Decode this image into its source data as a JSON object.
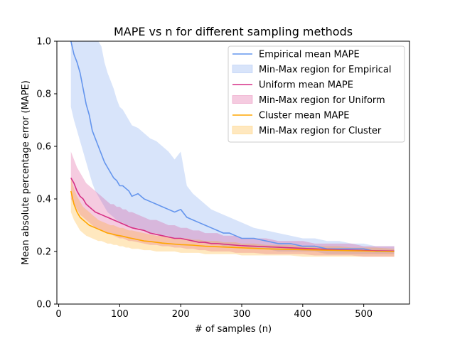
{
  "chart_data": {
    "type": "line",
    "title": "MAPE vs n for different sampling methods",
    "xlabel": "# of samples (n)",
    "ylabel": "Mean absolute percentage error (MAPE)",
    "xlim": [
      -3,
      575
    ],
    "ylim": [
      0.0,
      1.0
    ],
    "xticks": [
      0,
      100,
      200,
      300,
      400,
      500
    ],
    "yticks": [
      0.0,
      0.2,
      0.4,
      0.6,
      0.8,
      1.0
    ],
    "xtick_labels": [
      "0",
      "100",
      "200",
      "300",
      "400",
      "500"
    ],
    "ytick_labels": [
      "0.0",
      "0.2",
      "0.4",
      "0.6",
      "0.8",
      "1.0"
    ],
    "legend_position": "top-right",
    "grid": false,
    "series": [
      {
        "name": "Empirical mean MAPE",
        "band_name": "Min-Max region for Empirical",
        "color": "#6495ED",
        "x": [
          20,
          25,
          30,
          35,
          40,
          45,
          50,
          55,
          60,
          65,
          70,
          75,
          80,
          85,
          90,
          95,
          100,
          105,
          110,
          115,
          120,
          130,
          140,
          150,
          160,
          170,
          180,
          190,
          200,
          210,
          220,
          230,
          240,
          250,
          260,
          270,
          280,
          290,
          300,
          320,
          340,
          360,
          380,
          400,
          420,
          440,
          460,
          480,
          500,
          520,
          550
        ],
        "mean": [
          1.0,
          0.95,
          0.92,
          0.88,
          0.82,
          0.76,
          0.72,
          0.66,
          0.63,
          0.6,
          0.57,
          0.54,
          0.52,
          0.5,
          0.48,
          0.47,
          0.45,
          0.45,
          0.44,
          0.43,
          0.41,
          0.42,
          0.4,
          0.39,
          0.38,
          0.37,
          0.36,
          0.35,
          0.36,
          0.33,
          0.32,
          0.31,
          0.3,
          0.29,
          0.28,
          0.27,
          0.27,
          0.26,
          0.25,
          0.25,
          0.24,
          0.23,
          0.23,
          0.22,
          0.22,
          0.21,
          0.21,
          0.21,
          0.21,
          0.2,
          0.2
        ],
        "min": [
          0.75,
          0.7,
          0.66,
          0.62,
          0.58,
          0.54,
          0.5,
          0.46,
          0.43,
          0.41,
          0.39,
          0.37,
          0.35,
          0.34,
          0.33,
          0.32,
          0.31,
          0.31,
          0.3,
          0.3,
          0.29,
          0.29,
          0.28,
          0.27,
          0.27,
          0.26,
          0.26,
          0.25,
          0.25,
          0.25,
          0.24,
          0.24,
          0.23,
          0.23,
          0.23,
          0.22,
          0.22,
          0.22,
          0.22,
          0.21,
          0.21,
          0.2,
          0.2,
          0.2,
          0.2,
          0.19,
          0.19,
          0.19,
          0.19,
          0.19,
          0.19
        ],
        "max": [
          1.0,
          1.0,
          1.0,
          1.0,
          1.0,
          1.0,
          1.0,
          1.0,
          1.0,
          1.0,
          0.98,
          0.92,
          0.88,
          0.85,
          0.82,
          0.78,
          0.75,
          0.74,
          0.72,
          0.7,
          0.68,
          0.67,
          0.65,
          0.63,
          0.62,
          0.6,
          0.58,
          0.55,
          0.58,
          0.45,
          0.42,
          0.4,
          0.38,
          0.36,
          0.35,
          0.34,
          0.33,
          0.32,
          0.31,
          0.29,
          0.28,
          0.27,
          0.26,
          0.25,
          0.25,
          0.24,
          0.24,
          0.23,
          0.23,
          0.22,
          0.22
        ]
      },
      {
        "name": "Uniform mean MAPE",
        "band_name": "Min-Max region for Uniform",
        "color": "#D62F85",
        "x": [
          20,
          25,
          30,
          35,
          40,
          45,
          50,
          55,
          60,
          65,
          70,
          75,
          80,
          85,
          90,
          95,
          100,
          105,
          110,
          115,
          120,
          130,
          140,
          150,
          160,
          170,
          180,
          190,
          200,
          210,
          220,
          230,
          240,
          250,
          260,
          270,
          280,
          290,
          300,
          320,
          340,
          360,
          380,
          400,
          420,
          440,
          460,
          480,
          500,
          520,
          550
        ],
        "mean": [
          0.48,
          0.46,
          0.43,
          0.41,
          0.4,
          0.38,
          0.37,
          0.36,
          0.35,
          0.345,
          0.34,
          0.335,
          0.33,
          0.325,
          0.32,
          0.315,
          0.31,
          0.305,
          0.3,
          0.295,
          0.29,
          0.285,
          0.28,
          0.27,
          0.265,
          0.26,
          0.255,
          0.25,
          0.25,
          0.245,
          0.24,
          0.235,
          0.235,
          0.23,
          0.23,
          0.228,
          0.226,
          0.224,
          0.222,
          0.22,
          0.218,
          0.216,
          0.214,
          0.212,
          0.21,
          0.208,
          0.206,
          0.205,
          0.204,
          0.203,
          0.202
        ],
        "min": [
          0.4,
          0.38,
          0.36,
          0.34,
          0.33,
          0.32,
          0.31,
          0.3,
          0.29,
          0.285,
          0.28,
          0.275,
          0.27,
          0.265,
          0.26,
          0.255,
          0.25,
          0.25,
          0.245,
          0.24,
          0.24,
          0.235,
          0.23,
          0.225,
          0.225,
          0.22,
          0.22,
          0.215,
          0.215,
          0.21,
          0.21,
          0.205,
          0.205,
          0.2,
          0.2,
          0.2,
          0.2,
          0.195,
          0.195,
          0.195,
          0.19,
          0.19,
          0.19,
          0.19,
          0.185,
          0.185,
          0.185,
          0.185,
          0.18,
          0.18,
          0.18
        ],
        "max": [
          0.58,
          0.55,
          0.52,
          0.5,
          0.48,
          0.46,
          0.45,
          0.44,
          0.43,
          0.42,
          0.41,
          0.4,
          0.39,
          0.38,
          0.38,
          0.37,
          0.37,
          0.36,
          0.36,
          0.35,
          0.35,
          0.34,
          0.33,
          0.32,
          0.32,
          0.31,
          0.3,
          0.3,
          0.29,
          0.29,
          0.28,
          0.28,
          0.27,
          0.27,
          0.27,
          0.26,
          0.26,
          0.26,
          0.25,
          0.25,
          0.25,
          0.24,
          0.24,
          0.24,
          0.23,
          0.23,
          0.23,
          0.23,
          0.22,
          0.22,
          0.22
        ]
      },
      {
        "name": "Cluster mean MAPE",
        "band_name": "Min-Max region for Cluster",
        "color": "#FFA500",
        "x": [
          20,
          25,
          30,
          35,
          40,
          45,
          50,
          55,
          60,
          65,
          70,
          75,
          80,
          85,
          90,
          95,
          100,
          105,
          110,
          115,
          120,
          130,
          140,
          150,
          160,
          170,
          180,
          190,
          200,
          210,
          220,
          230,
          240,
          250,
          260,
          270,
          280,
          290,
          300,
          320,
          340,
          360,
          380,
          400,
          420,
          440,
          460,
          480,
          500,
          520,
          550
        ],
        "mean": [
          0.43,
          0.38,
          0.35,
          0.33,
          0.32,
          0.31,
          0.3,
          0.295,
          0.29,
          0.285,
          0.28,
          0.275,
          0.27,
          0.268,
          0.265,
          0.262,
          0.26,
          0.258,
          0.255,
          0.252,
          0.25,
          0.245,
          0.24,
          0.238,
          0.235,
          0.232,
          0.23,
          0.228,
          0.226,
          0.225,
          0.224,
          0.222,
          0.22,
          0.219,
          0.218,
          0.217,
          0.216,
          0.215,
          0.214,
          0.212,
          0.21,
          0.209,
          0.208,
          0.207,
          0.206,
          0.205,
          0.204,
          0.203,
          0.202,
          0.201,
          0.2
        ],
        "min": [
          0.35,
          0.32,
          0.3,
          0.28,
          0.27,
          0.26,
          0.255,
          0.25,
          0.245,
          0.24,
          0.24,
          0.235,
          0.23,
          0.23,
          0.225,
          0.225,
          0.22,
          0.22,
          0.215,
          0.215,
          0.21,
          0.21,
          0.205,
          0.205,
          0.2,
          0.2,
          0.2,
          0.2,
          0.195,
          0.195,
          0.195,
          0.195,
          0.19,
          0.19,
          0.19,
          0.19,
          0.19,
          0.19,
          0.185,
          0.185,
          0.185,
          0.185,
          0.185,
          0.18,
          0.18,
          0.18,
          0.18,
          0.18,
          0.18,
          0.18,
          0.18
        ],
        "max": [
          0.48,
          0.44,
          0.41,
          0.39,
          0.37,
          0.36,
          0.35,
          0.34,
          0.33,
          0.32,
          0.315,
          0.31,
          0.305,
          0.3,
          0.3,
          0.295,
          0.29,
          0.29,
          0.285,
          0.28,
          0.28,
          0.275,
          0.27,
          0.265,
          0.26,
          0.26,
          0.255,
          0.25,
          0.25,
          0.25,
          0.245,
          0.245,
          0.24,
          0.24,
          0.24,
          0.235,
          0.235,
          0.235,
          0.23,
          0.23,
          0.225,
          0.225,
          0.225,
          0.22,
          0.22,
          0.22,
          0.22,
          0.215,
          0.215,
          0.215,
          0.21
        ]
      }
    ]
  }
}
